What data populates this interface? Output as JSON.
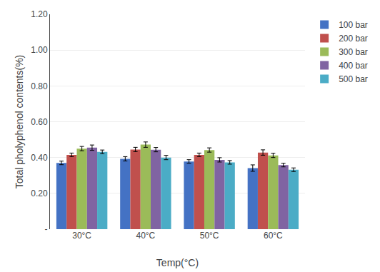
{
  "chart_data": {
    "type": "bar",
    "xlabel": "Temp(°C)",
    "ylabel": "Total pholyphenol contents(%)",
    "categories": [
      "30°C",
      "40°C",
      "50°C",
      "60°C"
    ],
    "series": [
      {
        "name": "100 bar",
        "color": "#4472C4",
        "values": [
          0.37,
          0.393,
          0.378,
          0.341
        ],
        "errors": [
          0.01,
          0.012,
          0.01,
          0.018
        ]
      },
      {
        "name": "200 bar",
        "color": "#C0504D",
        "values": [
          0.415,
          0.445,
          0.415,
          0.428
        ],
        "errors": [
          0.01,
          0.012,
          0.01,
          0.015
        ]
      },
      {
        "name": "300 bar",
        "color": "#9BBB59",
        "values": [
          0.45,
          0.472,
          0.442,
          0.412
        ],
        "errors": [
          0.012,
          0.015,
          0.012,
          0.012
        ]
      },
      {
        "name": "400 bar",
        "color": "#8064A2",
        "values": [
          0.455,
          0.444,
          0.387,
          0.358
        ],
        "errors": [
          0.015,
          0.012,
          0.012,
          0.01
        ]
      },
      {
        "name": "500 bar",
        "color": "#4BACC6",
        "values": [
          0.432,
          0.4,
          0.373,
          0.332
        ],
        "errors": [
          0.01,
          0.012,
          0.01,
          0.01
        ]
      }
    ],
    "ylim": [
      0,
      1.2
    ],
    "yticks": [
      {
        "value": 0,
        "label": "-"
      },
      {
        "value": 0.2,
        "label": "0.20"
      },
      {
        "value": 0.4,
        "label": "0.40"
      },
      {
        "value": 0.6,
        "label": "0.60"
      },
      {
        "value": 0.8,
        "label": "0.80"
      },
      {
        "value": 1.0,
        "label": "1.00"
      },
      {
        "value": 1.2,
        "label": "1.20"
      }
    ],
    "grid": true,
    "legend": "right"
  }
}
